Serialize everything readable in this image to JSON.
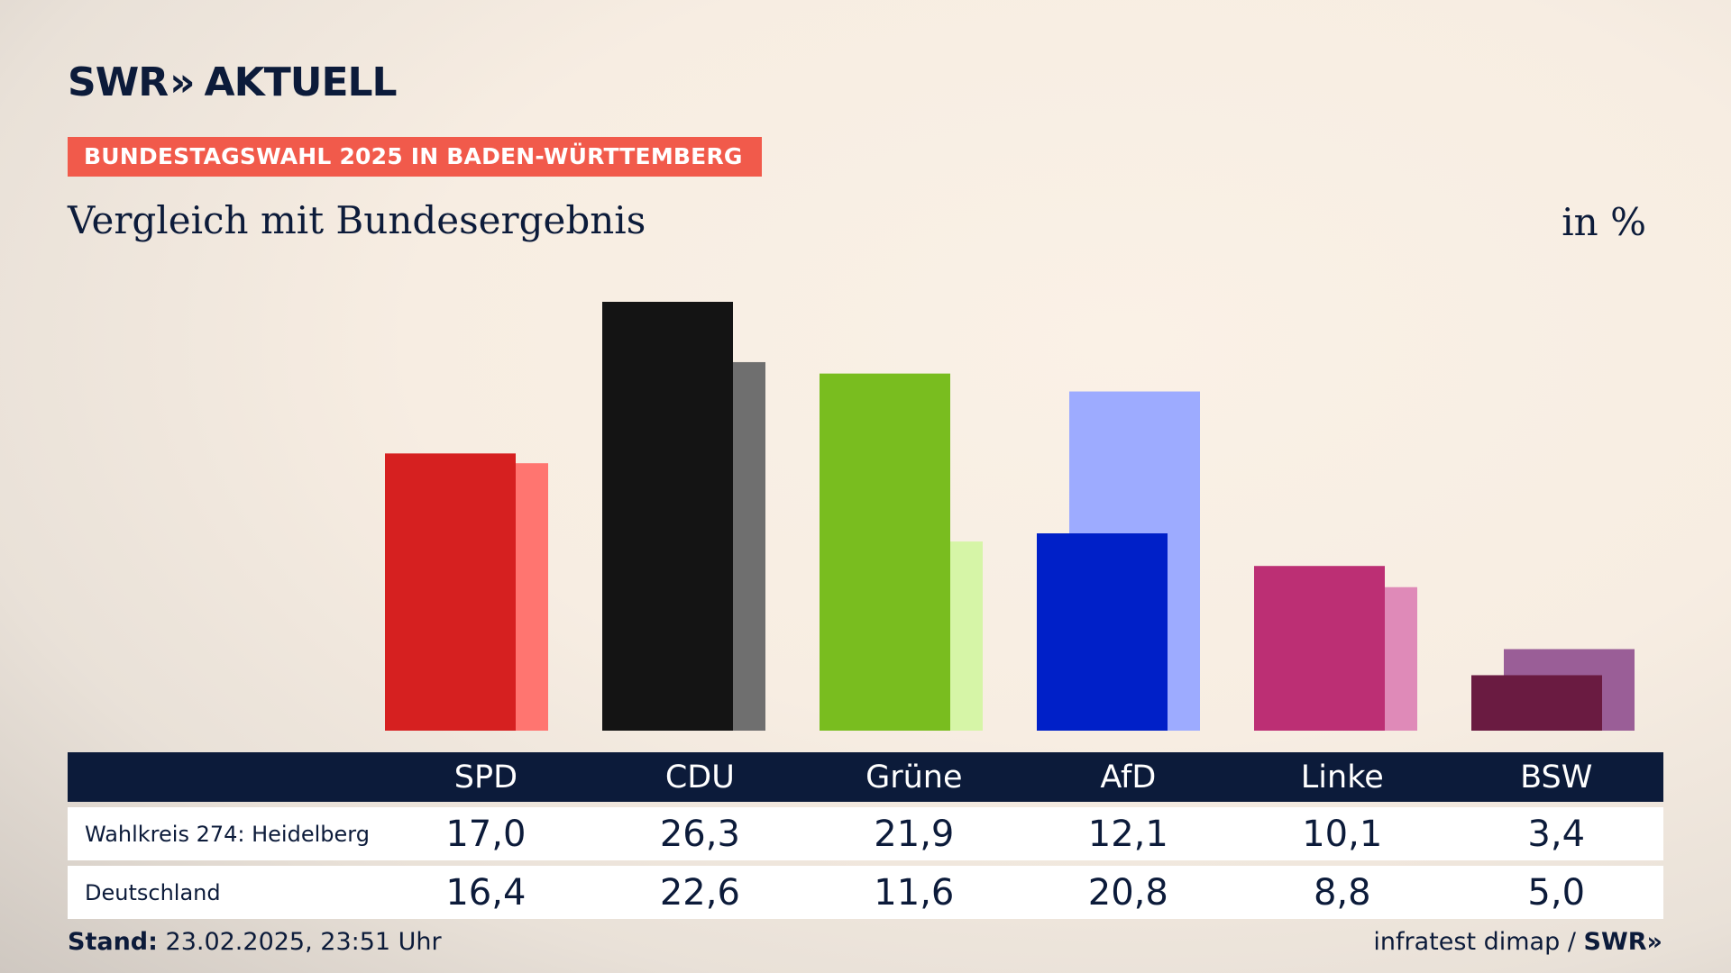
{
  "brand": {
    "logo_left": "SWR",
    "logo_arrows": "»",
    "logo_right": "AKTUELL"
  },
  "kicker": "BUNDESTAGSWAHL 2025 IN BADEN-WÜRTTEMBERG",
  "title": "Vergleich mit Bundesergebnis",
  "unit": "in %",
  "table": {
    "parties": [
      "SPD",
      "CDU",
      "Grüne",
      "AfD",
      "Linke",
      "BSW"
    ],
    "rows": [
      {
        "label": "Wahlkreis 274: Heidelberg",
        "values": [
          "17,0",
          "26,3",
          "21,9",
          "12,1",
          "10,1",
          "3,4"
        ]
      },
      {
        "label": "Deutschland",
        "values": [
          "16,4",
          "22,6",
          "11,6",
          "20,8",
          "8,8",
          "5,0"
        ]
      }
    ]
  },
  "footer": {
    "stand_label": "Stand:",
    "stand_value": "23.02.2025, 23:51 Uhr",
    "source": "infratest dimap /",
    "source_brand": "SWR»"
  },
  "chart_data": {
    "type": "bar",
    "categories": [
      "SPD",
      "CDU",
      "Grüne",
      "AfD",
      "Linke",
      "BSW"
    ],
    "series": [
      {
        "name": "Wahlkreis 274: Heidelberg",
        "values": [
          17.0,
          26.3,
          21.9,
          12.1,
          10.1,
          3.4
        ],
        "colors": [
          "#d62020",
          "#141414",
          "#79bd1f",
          "#0020c8",
          "#bc2f74",
          "#6a1b41"
        ]
      },
      {
        "name": "Deutschland",
        "values": [
          16.4,
          22.6,
          11.6,
          20.8,
          8.8,
          5.0
        ],
        "colors": [
          "#ff7570",
          "#6f6f6f",
          "#d6f5a7",
          "#9dabff",
          "#df8ab8",
          "#9a5e97"
        ]
      }
    ],
    "ylabel": "in %",
    "ylim": [
      0,
      26.3
    ]
  }
}
